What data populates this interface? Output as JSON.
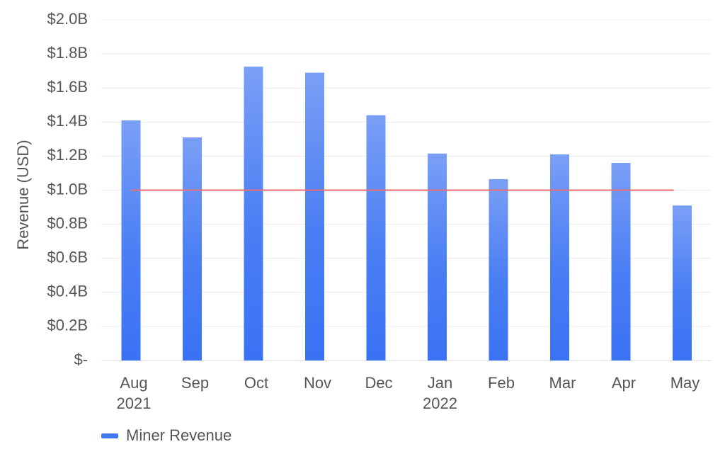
{
  "chart_data": {
    "type": "bar",
    "categories": [
      [
        "Aug",
        "2021"
      ],
      [
        "Sep",
        ""
      ],
      [
        "Oct",
        ""
      ],
      [
        "Nov",
        ""
      ],
      [
        "Dec",
        ""
      ],
      [
        "Jan",
        "2022"
      ],
      [
        "Feb",
        ""
      ],
      [
        "Mar",
        ""
      ],
      [
        "Apr",
        ""
      ],
      [
        "May",
        ""
      ]
    ],
    "series": [
      {
        "name": "Miner Revenue",
        "color": "#3f77f5",
        "values": [
          1.41,
          1.31,
          1.725,
          1.69,
          1.44,
          1.215,
          1.065,
          1.21,
          1.16,
          0.91
        ]
      }
    ],
    "reference_line": {
      "value": 1.0,
      "color": "#f06b73"
    },
    "ylabel": "Revenue (USD)",
    "ylim": [
      0,
      2.0
    ],
    "yticks": [
      {
        "value": 0,
        "label": "$-"
      },
      {
        "value": 0.2,
        "label": "$0.2B"
      },
      {
        "value": 0.4,
        "label": "$0.4B"
      },
      {
        "value": 0.6,
        "label": "$0.6B"
      },
      {
        "value": 0.8,
        "label": "$0.8B"
      },
      {
        "value": 1.0,
        "label": "$1.0B"
      },
      {
        "value": 1.2,
        "label": "$1.2B"
      },
      {
        "value": 1.4,
        "label": "$1.4B"
      },
      {
        "value": 1.6,
        "label": "$1.6B"
      },
      {
        "value": 1.8,
        "label": "$1.8B"
      },
      {
        "value": 2.0,
        "label": "$2.0B"
      }
    ],
    "grid": true,
    "legend": {
      "position": "bottom-left",
      "label": "Miner Revenue"
    }
  }
}
